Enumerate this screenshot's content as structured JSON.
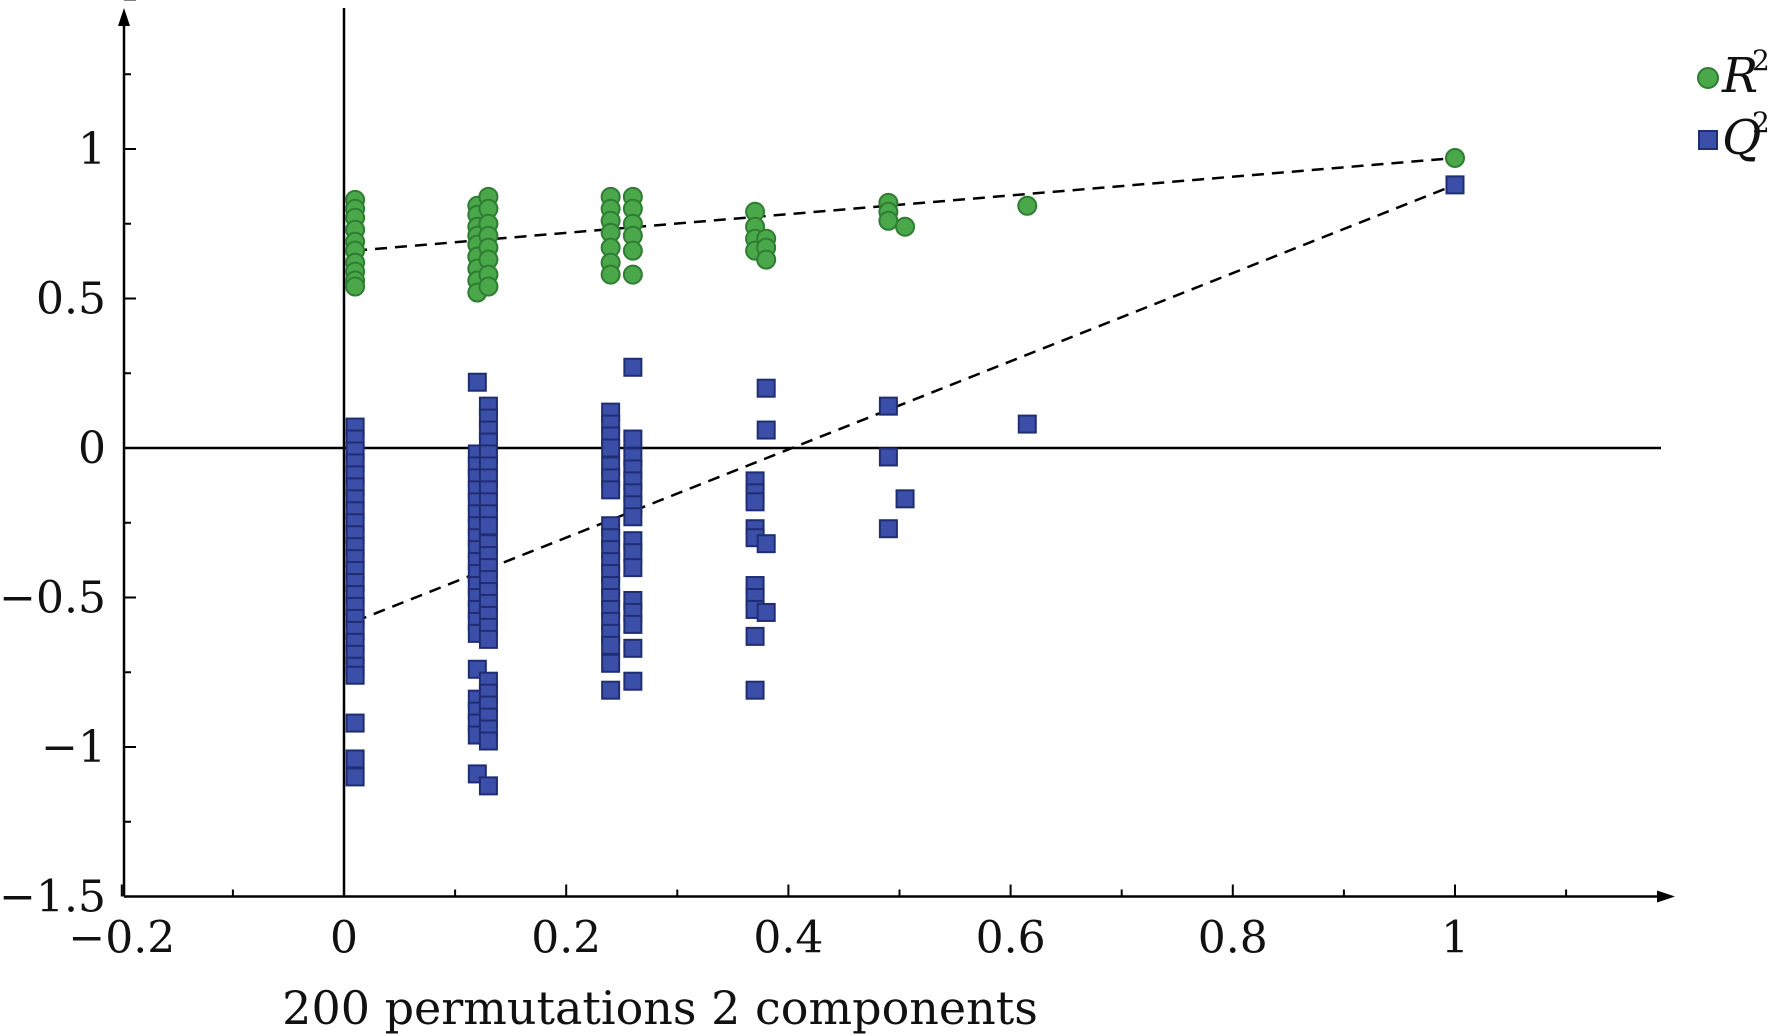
{
  "chart_data": {
    "type": "scatter",
    "title": "",
    "xlabel": "200 permutations 2 components",
    "ylabel": "",
    "xlim": [
      -0.2,
      1.2
    ],
    "ylim": [
      -1.5,
      1.5
    ],
    "grid": false,
    "legend_position": "top-right",
    "x_ticks": [
      "−0.2",
      "0",
      "0.2",
      "0.4",
      "0.6",
      "0.8",
      "1"
    ],
    "x_tick_values": [
      -0.2,
      0,
      0.2,
      0.4,
      0.6,
      0.8,
      1
    ],
    "y_ticks": [
      "−1.5",
      "−1",
      "−0.5",
      "0",
      "0.5",
      "1"
    ],
    "y_tick_values": [
      -1.5,
      -1,
      -0.5,
      0,
      0.5,
      1
    ],
    "series": [
      {
        "name": "R",
        "superscript": "2",
        "marker": "circle",
        "color": "#4aa84a",
        "stroke": "#2e7d32",
        "points": [
          [
            0.01,
            0.83
          ],
          [
            0.01,
            0.8
          ],
          [
            0.01,
            0.77
          ],
          [
            0.01,
            0.73
          ],
          [
            0.01,
            0.69
          ],
          [
            0.01,
            0.66
          ],
          [
            0.01,
            0.62
          ],
          [
            0.01,
            0.59
          ],
          [
            0.01,
            0.56
          ],
          [
            0.01,
            0.54
          ],
          [
            0.12,
            0.81
          ],
          [
            0.12,
            0.78
          ],
          [
            0.12,
            0.74
          ],
          [
            0.12,
            0.71
          ],
          [
            0.12,
            0.68
          ],
          [
            0.12,
            0.64
          ],
          [
            0.12,
            0.6
          ],
          [
            0.12,
            0.56
          ],
          [
            0.12,
            0.52
          ],
          [
            0.13,
            0.84
          ],
          [
            0.13,
            0.8
          ],
          [
            0.13,
            0.75
          ],
          [
            0.13,
            0.71
          ],
          [
            0.13,
            0.67
          ],
          [
            0.13,
            0.63
          ],
          [
            0.13,
            0.58
          ],
          [
            0.13,
            0.54
          ],
          [
            0.24,
            0.84
          ],
          [
            0.24,
            0.8
          ],
          [
            0.24,
            0.76
          ],
          [
            0.24,
            0.72
          ],
          [
            0.24,
            0.67
          ],
          [
            0.24,
            0.62
          ],
          [
            0.24,
            0.58
          ],
          [
            0.26,
            0.84
          ],
          [
            0.26,
            0.8
          ],
          [
            0.26,
            0.75
          ],
          [
            0.26,
            0.71
          ],
          [
            0.26,
            0.66
          ],
          [
            0.26,
            0.58
          ],
          [
            0.37,
            0.79
          ],
          [
            0.37,
            0.74
          ],
          [
            0.37,
            0.7
          ],
          [
            0.37,
            0.66
          ],
          [
            0.38,
            0.7
          ],
          [
            0.38,
            0.67
          ],
          [
            0.38,
            0.63
          ],
          [
            0.49,
            0.82
          ],
          [
            0.49,
            0.79
          ],
          [
            0.49,
            0.76
          ],
          [
            0.505,
            0.74
          ],
          [
            0.615,
            0.81
          ],
          [
            1.0,
            0.97
          ]
        ]
      },
      {
        "name": "Q",
        "superscript": "2",
        "marker": "square",
        "color": "#3b4fa8",
        "stroke": "#1f2d74",
        "points": [
          [
            0.01,
            0.07
          ],
          [
            0.01,
            0.03
          ],
          [
            0.01,
            -0.01
          ],
          [
            0.01,
            -0.05
          ],
          [
            0.01,
            -0.09
          ],
          [
            0.01,
            -0.13
          ],
          [
            0.01,
            -0.17
          ],
          [
            0.01,
            -0.21
          ],
          [
            0.01,
            -0.25
          ],
          [
            0.01,
            -0.29
          ],
          [
            0.01,
            -0.33
          ],
          [
            0.01,
            -0.37
          ],
          [
            0.01,
            -0.41
          ],
          [
            0.01,
            -0.45
          ],
          [
            0.01,
            -0.49
          ],
          [
            0.01,
            -0.53
          ],
          [
            0.01,
            -0.57
          ],
          [
            0.01,
            -0.61
          ],
          [
            0.01,
            -0.65
          ],
          [
            0.01,
            -0.69
          ],
          [
            0.01,
            -0.73
          ],
          [
            0.01,
            -0.76
          ],
          [
            0.01,
            -0.92
          ],
          [
            0.01,
            -1.04
          ],
          [
            0.01,
            -1.1
          ],
          [
            0.12,
            0.22
          ],
          [
            0.12,
            -0.02
          ],
          [
            0.12,
            -0.06
          ],
          [
            0.12,
            -0.1
          ],
          [
            0.12,
            -0.14
          ],
          [
            0.12,
            -0.18
          ],
          [
            0.12,
            -0.22
          ],
          [
            0.12,
            -0.26
          ],
          [
            0.12,
            -0.3
          ],
          [
            0.12,
            -0.34
          ],
          [
            0.12,
            -0.38
          ],
          [
            0.12,
            -0.42
          ],
          [
            0.12,
            -0.46
          ],
          [
            0.12,
            -0.5
          ],
          [
            0.12,
            -0.54
          ],
          [
            0.12,
            -0.58
          ],
          [
            0.12,
            -0.62
          ],
          [
            0.12,
            -0.74
          ],
          [
            0.12,
            -0.84
          ],
          [
            0.12,
            -0.88
          ],
          [
            0.12,
            -0.92
          ],
          [
            0.12,
            -0.96
          ],
          [
            0.12,
            -1.09
          ],
          [
            0.13,
            0.14
          ],
          [
            0.13,
            0.1
          ],
          [
            0.13,
            0.06
          ],
          [
            0.13,
            0.02
          ],
          [
            0.13,
            -0.02
          ],
          [
            0.13,
            -0.06
          ],
          [
            0.13,
            -0.1
          ],
          [
            0.13,
            -0.14
          ],
          [
            0.13,
            -0.18
          ],
          [
            0.13,
            -0.22
          ],
          [
            0.13,
            -0.26
          ],
          [
            0.13,
            -0.32
          ],
          [
            0.13,
            -0.36
          ],
          [
            0.13,
            -0.4
          ],
          [
            0.13,
            -0.44
          ],
          [
            0.13,
            -0.48
          ],
          [
            0.13,
            -0.52
          ],
          [
            0.13,
            -0.56
          ],
          [
            0.13,
            -0.6
          ],
          [
            0.13,
            -0.64
          ],
          [
            0.13,
            -0.78
          ],
          [
            0.13,
            -0.82
          ],
          [
            0.13,
            -0.86
          ],
          [
            0.13,
            -0.9
          ],
          [
            0.13,
            -0.94
          ],
          [
            0.13,
            -0.98
          ],
          [
            0.13,
            -1.13
          ],
          [
            0.24,
            0.12
          ],
          [
            0.24,
            0.08
          ],
          [
            0.24,
            0.04
          ],
          [
            0.24,
            0.0
          ],
          [
            0.24,
            -0.06
          ],
          [
            0.24,
            -0.1
          ],
          [
            0.24,
            -0.14
          ],
          [
            0.24,
            -0.26
          ],
          [
            0.24,
            -0.3
          ],
          [
            0.24,
            -0.34
          ],
          [
            0.24,
            -0.38
          ],
          [
            0.24,
            -0.42
          ],
          [
            0.24,
            -0.46
          ],
          [
            0.24,
            -0.5
          ],
          [
            0.24,
            -0.54
          ],
          [
            0.24,
            -0.58
          ],
          [
            0.24,
            -0.62
          ],
          [
            0.24,
            -0.66
          ],
          [
            0.24,
            -0.72
          ],
          [
            0.24,
            -0.81
          ],
          [
            0.26,
            0.27
          ],
          [
            0.26,
            0.03
          ],
          [
            0.26,
            -0.03
          ],
          [
            0.26,
            -0.07
          ],
          [
            0.26,
            -0.11
          ],
          [
            0.26,
            -0.15
          ],
          [
            0.26,
            -0.19
          ],
          [
            0.26,
            -0.23
          ],
          [
            0.26,
            -0.31
          ],
          [
            0.26,
            -0.35
          ],
          [
            0.26,
            -0.4
          ],
          [
            0.26,
            -0.51
          ],
          [
            0.26,
            -0.55
          ],
          [
            0.26,
            -0.59
          ],
          [
            0.26,
            -0.67
          ],
          [
            0.26,
            -0.78
          ],
          [
            0.37,
            -0.11
          ],
          [
            0.37,
            -0.15
          ],
          [
            0.37,
            -0.18
          ],
          [
            0.37,
            -0.27
          ],
          [
            0.37,
            -0.3
          ],
          [
            0.37,
            -0.46
          ],
          [
            0.37,
            -0.5
          ],
          [
            0.37,
            -0.54
          ],
          [
            0.37,
            -0.63
          ],
          [
            0.37,
            -0.81
          ],
          [
            0.38,
            0.2
          ],
          [
            0.38,
            0.06
          ],
          [
            0.38,
            -0.32
          ],
          [
            0.38,
            -0.55
          ],
          [
            0.49,
            0.14
          ],
          [
            0.49,
            -0.03
          ],
          [
            0.49,
            -0.27
          ],
          [
            0.505,
            -0.17
          ],
          [
            0.615,
            0.08
          ],
          [
            1.0,
            0.88
          ]
        ]
      }
    ],
    "regression_lines": [
      {
        "series": "R",
        "x": [
          0.01,
          1.0
        ],
        "y": [
          0.66,
          0.97
        ],
        "style": "dashed"
      },
      {
        "series": "Q",
        "x": [
          0.01,
          1.0
        ],
        "y": [
          -0.58,
          0.88
        ],
        "style": "dashed"
      }
    ]
  }
}
